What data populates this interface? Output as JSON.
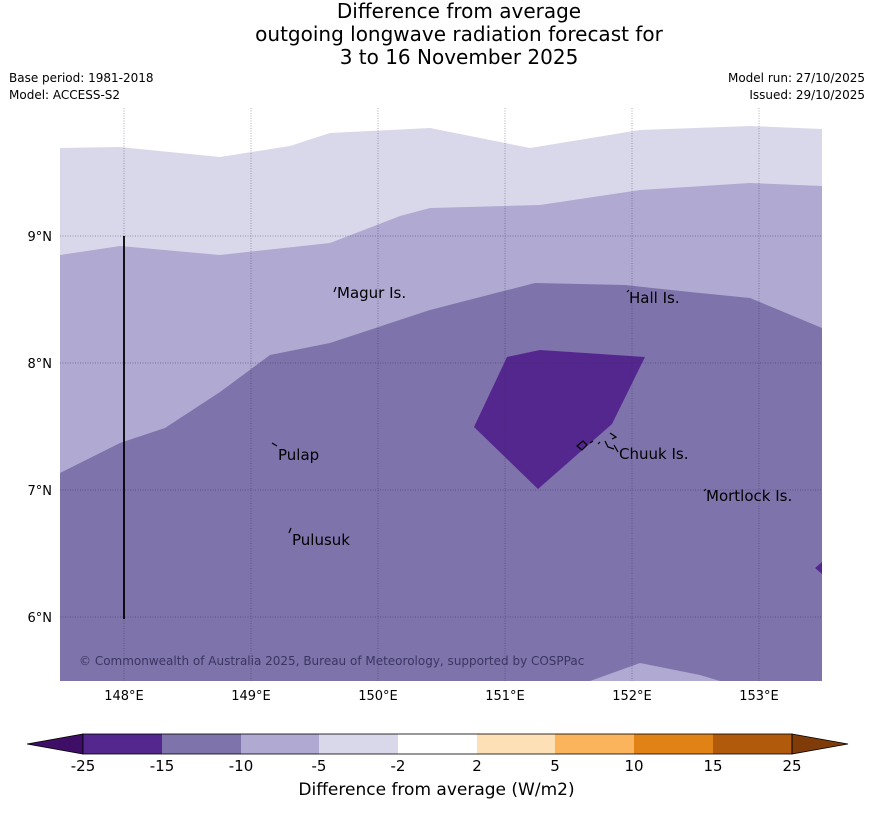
{
  "title": {
    "line1": "Difference from average",
    "line2": "outgoing longwave radiation forecast for",
    "line3": "3 to 16 November 2025"
  },
  "meta": {
    "base_period": "Base period: 1981-2018",
    "model": "Model: ACCESS-S2",
    "model_run": "Model run: 27/10/2025",
    "issued": "Issued: 29/10/2025"
  },
  "map": {
    "lat_labels": [
      "9°N",
      "8°N",
      "7°N",
      "6°N"
    ],
    "lon_labels": [
      "148°E",
      "149°E",
      "150°E",
      "151°E",
      "152°E",
      "153°E"
    ],
    "places": [
      "Magur Is.",
      "Hall Is.",
      "Pulap",
      "Chuuk Is.",
      "Mortlock Is.",
      "Pulusuk"
    ],
    "copyright": "© Commonwealth of Australia 2025, Bureau of Meteorology, supported by COSPPac"
  },
  "colorbar": {
    "ticks": [
      "-25",
      "-15",
      "-10",
      "-5",
      "-2",
      "2",
      "5",
      "10",
      "15",
      "25"
    ],
    "label": "Difference from average (W/m2)",
    "colors": [
      "#3f0f67",
      "#54278f",
      "#7f73ab",
      "#b0a9d1",
      "#d9d8ea",
      "#ffffff",
      "#fde0b6",
      "#fbb45c",
      "#e08216",
      "#b25a0b",
      "#7f3b08"
    ]
  }
}
